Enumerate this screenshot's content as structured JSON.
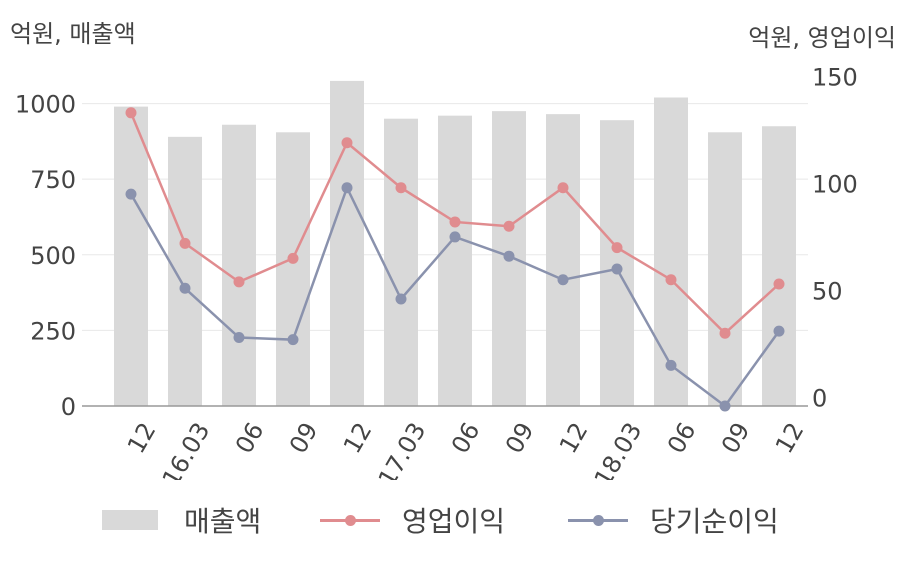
{
  "units": {
    "left": "억원, 매출액",
    "right": "억원, 영업이익"
  },
  "legend": {
    "revenue": "매출액",
    "operating_profit": "영업이익",
    "net_income": "당기순이익"
  },
  "chart_data": {
    "type": "bar+line",
    "categories": [
      "12",
      "16.03",
      "06",
      "09",
      "12",
      "17.03",
      "06",
      "09",
      "12",
      "18.03",
      "06",
      "09",
      "12"
    ],
    "series": [
      {
        "name": "매출액",
        "type": "bar",
        "axis": "left",
        "color": "#d9d9d9",
        "values": [
          990,
          890,
          930,
          905,
          1075,
          950,
          960,
          975,
          965,
          945,
          1020,
          905,
          925
        ]
      },
      {
        "name": "영업이익",
        "type": "line",
        "axis": "right",
        "color": "#e08c8f",
        "values": [
          133,
          72,
          54,
          65,
          119,
          98,
          82,
          80,
          98,
          70,
          55,
          30,
          53
        ]
      },
      {
        "name": "당기순이익",
        "type": "line",
        "axis": "right",
        "color": "#8a92ad",
        "values": [
          95,
          51,
          28,
          27,
          98,
          46,
          75,
          66,
          55,
          60,
          15,
          -4,
          31
        ]
      }
    ],
    "left_axis": {
      "ticks": [
        0,
        250,
        500,
        750,
        1000
      ],
      "range": [
        0,
        1111
      ]
    },
    "right_axis": {
      "ticks": [
        0,
        50,
        100,
        150
      ],
      "range": [
        -4,
        153
      ]
    },
    "grid": true,
    "legend_position": "bottom"
  }
}
